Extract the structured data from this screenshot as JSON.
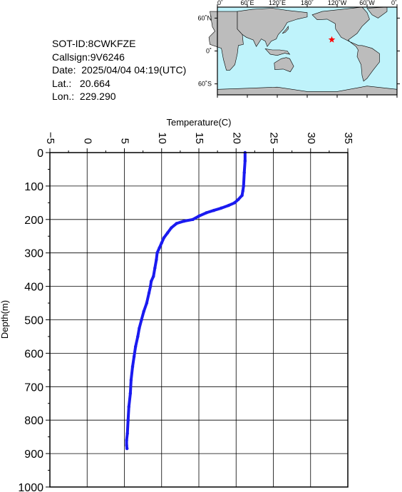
{
  "header": {
    "sot_id": "SOT-ID:8CWKFZE",
    "callsign": "Callsign:9V6246",
    "date": "Date:  2025/04/04 04:19(UTC)",
    "lat": "Lat.:   20.664",
    "lon": "Lon.:  229.290"
  },
  "map": {
    "lon_ticks": [
      "0˚",
      "60˚E",
      "120˚E",
      "180˚",
      "120˚W",
      "60˚W",
      "0˚"
    ],
    "lat_ticks": [
      "60˚N",
      "0˚",
      "60˚S"
    ],
    "marker_lon": 229.29,
    "marker_lat": 20.664,
    "ocean_color": "#bff3fb",
    "land_color": "#bcbcbc",
    "marker_color": "#ff0000",
    "marker_icon": "star-icon"
  },
  "chart_data": {
    "type": "line",
    "xlabel": "Temperature(C)",
    "ylabel": "Depth(m)",
    "xlim": [
      -5,
      35
    ],
    "ylim": [
      1000,
      0
    ],
    "x_ticks": [
      -5,
      0,
      5,
      10,
      15,
      20,
      25,
      30,
      35
    ],
    "y_ticks": [
      0,
      100,
      200,
      300,
      400,
      500,
      600,
      700,
      800,
      900,
      1000
    ],
    "line_color": "#1a1af0",
    "series": [
      {
        "x": [
          21.2,
          21.2,
          21.1,
          21.0,
          20.9,
          20.8,
          20.3,
          19.8,
          19.0,
          18.0,
          17.0,
          16.0,
          15.0,
          14.2,
          13.0,
          12.0,
          11.3,
          10.8,
          10.3,
          10.0,
          9.7,
          9.4,
          9.3,
          9.1,
          8.9,
          8.6,
          8.5,
          8.3,
          8.0,
          7.6,
          7.3,
          7.0,
          6.8,
          6.5,
          6.3,
          6.1,
          5.9,
          5.8,
          5.6,
          5.5,
          5.4,
          5.3,
          5.3,
          5.35
        ],
        "y": [
          0,
          25,
          60,
          100,
          115,
          128,
          140,
          150,
          158,
          166,
          173,
          180,
          190,
          200,
          205,
          212,
          225,
          240,
          255,
          270,
          285,
          300,
          320,
          345,
          370,
          385,
          400,
          420,
          450,
          475,
          500,
          525,
          550,
          580,
          610,
          640,
          680,
          720,
          760,
          800,
          840,
          860,
          875,
          885
        ]
      }
    ]
  }
}
